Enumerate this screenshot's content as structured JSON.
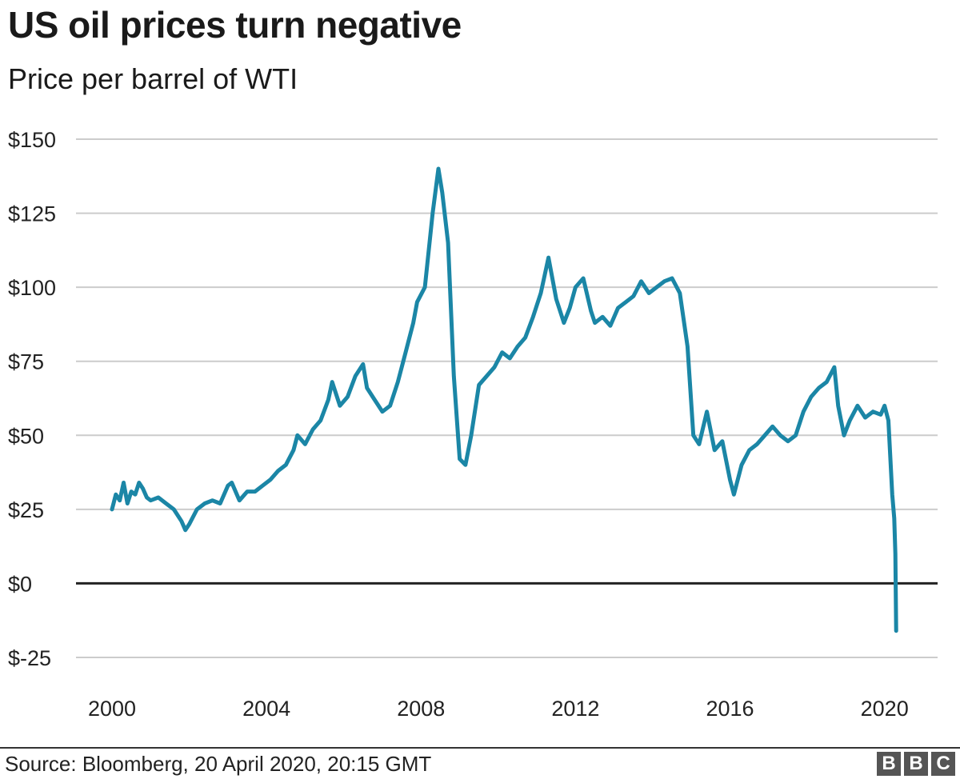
{
  "header": {
    "title": "US oil prices turn negative",
    "subtitle": "Price per barrel of WTI"
  },
  "footer": {
    "source": "Source: Bloomberg, 20 April 2020, 20:15 GMT",
    "logo_letters": [
      "B",
      "B",
      "C"
    ]
  },
  "colors": {
    "line": "#1b86a6",
    "grid": "#cccccc",
    "zero_line": "#222222",
    "logo_bg": "#555555"
  },
  "chart_data": {
    "type": "line",
    "title": "US oil prices turn negative",
    "subtitle": "Price per barrel of WTI",
    "xlabel": "",
    "ylabel": "",
    "xlim": [
      2000,
      2020.4
    ],
    "ylim": [
      -25,
      150
    ],
    "x_ticks": [
      2000,
      2004,
      2008,
      2012,
      2016,
      2020
    ],
    "x_tick_labels": [
      "2000",
      "2004",
      "2008",
      "2012",
      "2016",
      "2020"
    ],
    "y_ticks": [
      150,
      125,
      100,
      75,
      50,
      25,
      0,
      -25
    ],
    "y_tick_labels": [
      "$150",
      "$125",
      "$100",
      "$75",
      "$50",
      "$25",
      "$0",
      "$-25"
    ],
    "grid": true,
    "series": [
      {
        "x": [
          2000.0,
          2000.1,
          2000.2,
          2000.3,
          2000.4,
          2000.5,
          2000.6,
          2000.7,
          2000.8,
          2000.9,
          2001.0,
          2001.2,
          2001.4,
          2001.6,
          2001.8,
          2001.9,
          2002.0,
          2002.2,
          2002.4,
          2002.6,
          2002.8,
          2003.0,
          2003.1,
          2003.3,
          2003.5,
          2003.7,
          2003.9,
          2004.1,
          2004.3,
          2004.5,
          2004.7,
          2004.8,
          2005.0,
          2005.2,
          2005.4,
          2005.6,
          2005.7,
          2005.9,
          2006.1,
          2006.3,
          2006.5,
          2006.6,
          2006.8,
          2007.0,
          2007.2,
          2007.4,
          2007.6,
          2007.8,
          2007.9,
          2008.1,
          2008.3,
          2008.45,
          2008.55,
          2008.7,
          2008.85,
          2009.0,
          2009.15,
          2009.3,
          2009.5,
          2009.7,
          2009.9,
          2010.1,
          2010.3,
          2010.5,
          2010.7,
          2010.9,
          2011.1,
          2011.3,
          2011.5,
          2011.7,
          2011.85,
          2012.0,
          2012.2,
          2012.4,
          2012.5,
          2012.7,
          2012.9,
          2013.1,
          2013.3,
          2013.5,
          2013.7,
          2013.9,
          2014.1,
          2014.3,
          2014.5,
          2014.7,
          2014.9,
          2015.05,
          2015.2,
          2015.4,
          2015.6,
          2015.8,
          2016.0,
          2016.1,
          2016.3,
          2016.5,
          2016.7,
          2016.9,
          2017.1,
          2017.3,
          2017.5,
          2017.7,
          2017.9,
          2018.1,
          2018.3,
          2018.5,
          2018.7,
          2018.8,
          2018.95,
          2019.1,
          2019.3,
          2019.5,
          2019.7,
          2019.9,
          2020.0,
          2020.1,
          2020.2,
          2020.25,
          2020.28,
          2020.3
        ],
        "values": [
          25,
          30,
          28,
          34,
          27,
          31,
          30,
          34,
          32,
          29,
          28,
          29,
          27,
          25,
          21,
          18,
          20,
          25,
          27,
          28,
          27,
          33,
          34,
          28,
          31,
          31,
          33,
          35,
          38,
          40,
          45,
          50,
          47,
          52,
          55,
          62,
          68,
          60,
          63,
          70,
          74,
          66,
          62,
          58,
          60,
          68,
          78,
          88,
          95,
          100,
          125,
          140,
          132,
          115,
          70,
          42,
          40,
          50,
          67,
          70,
          73,
          78,
          76,
          80,
          83,
          90,
          98,
          110,
          96,
          88,
          93,
          100,
          103,
          92,
          88,
          90,
          87,
          93,
          95,
          97,
          102,
          98,
          100,
          102,
          103,
          98,
          80,
          50,
          47,
          58,
          45,
          48,
          35,
          30,
          40,
          45,
          47,
          50,
          53,
          50,
          48,
          50,
          58,
          63,
          66,
          68,
          73,
          60,
          50,
          55,
          60,
          56,
          58,
          57,
          60,
          55,
          30,
          22,
          10,
          -16
        ]
      }
    ]
  }
}
